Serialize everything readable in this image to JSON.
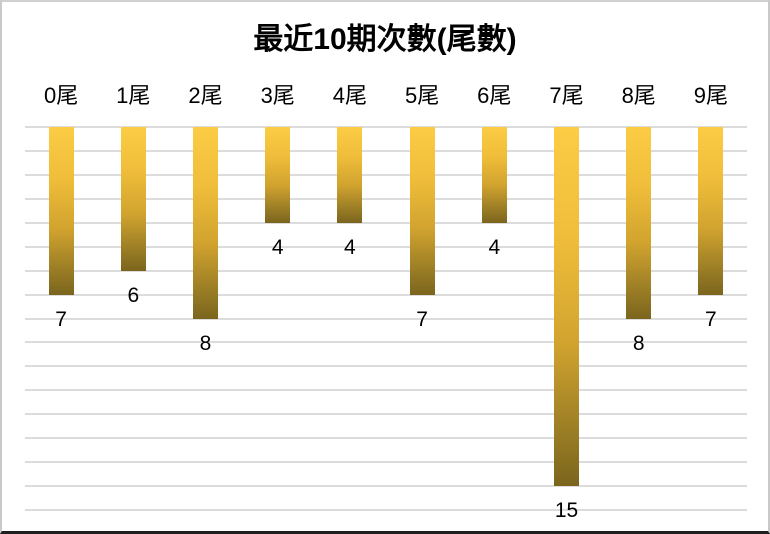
{
  "chart_data": {
    "type": "bar",
    "orientation": "hanging-from-top",
    "title": "最近10期次數(尾數)",
    "categories": [
      "0尾",
      "1尾",
      "2尾",
      "3尾",
      "4尾",
      "5尾",
      "6尾",
      "7尾",
      "8尾",
      "9尾"
    ],
    "values": [
      7,
      6,
      8,
      4,
      4,
      7,
      4,
      15,
      8,
      7
    ],
    "xlabel": "",
    "ylabel": "",
    "ylim": [
      0,
      16
    ],
    "gridline_count": 17,
    "grid": true,
    "legend": false,
    "data_labels": "below-bar",
    "colors": {
      "bar_gradient_top": "#FCCC45",
      "bar_gradient_bottom": "#7B651D",
      "gridline": "#DCDCDC",
      "text": "#000000",
      "background": "#FFFFFF",
      "border": "#C9C9C9",
      "border_bottom": "#1F1F1F"
    }
  }
}
